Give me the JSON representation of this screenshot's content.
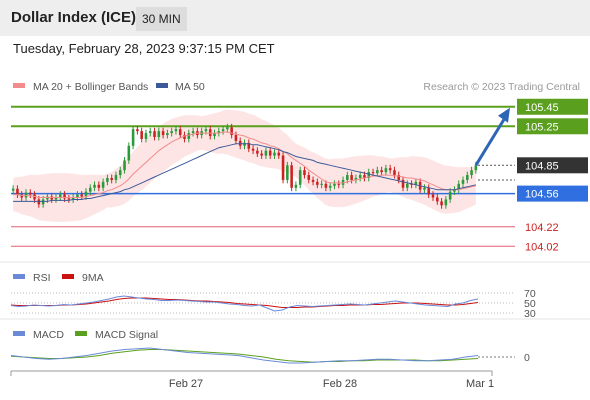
{
  "header": {
    "title": "Dollar Index (ICE)",
    "timeframe": "30 MIN"
  },
  "datetime": "Tuesday, February 28, 2023 9:37:15 PM CET",
  "legend": {
    "ma20": "MA 20 + Bollinger Bands",
    "ma50": "MA 50",
    "credit": "Research © 2023 Trading Central"
  },
  "colors": {
    "ma20": "#f28b8b",
    "ma50": "#3d5a98",
    "resistance": "#5aa01e",
    "pivot": "#2f6fe0",
    "support": "#e06070",
    "up": "#2a9a3a",
    "down": "#cc2222",
    "bollinger": "#fde0e0",
    "arrow": "#2d66b4",
    "rsi": "#6a8ad8",
    "rsi9ma": "#cc1111",
    "macd": "#6a8ad8",
    "macdSignal": "#5aa01e"
  },
  "chart_data": [
    {
      "type": "candlestick",
      "xlabel": "",
      "ylabel": "",
      "x_ticks": [
        "Feb 27",
        "Feb 28",
        "Mar 1"
      ],
      "ylim": [
        103.9,
        105.55
      ],
      "levels": [
        {
          "value": 105.45,
          "label": "105.45",
          "kind": "resistance"
        },
        {
          "value": 105.25,
          "label": "105.25",
          "kind": "resistance"
        },
        {
          "value": 104.85,
          "label": "104.85",
          "kind": "last"
        },
        {
          "value": 104.56,
          "label": "104.56",
          "kind": "pivot"
        },
        {
          "value": 104.22,
          "label": "104.22",
          "kind": "support"
        },
        {
          "value": 104.02,
          "label": "104.02",
          "kind": "support"
        }
      ],
      "close": [
        104.61,
        104.55,
        104.52,
        104.57,
        104.55,
        104.5,
        104.45,
        104.5,
        104.53,
        104.5,
        104.52,
        104.55,
        104.51,
        104.5,
        104.52,
        104.55,
        104.53,
        104.58,
        104.62,
        104.65,
        104.62,
        104.68,
        104.72,
        104.7,
        104.75,
        104.8,
        104.9,
        105.05,
        105.22,
        105.2,
        105.12,
        105.18,
        105.2,
        105.14,
        105.2,
        105.16,
        105.18,
        105.2,
        105.22,
        105.16,
        105.12,
        105.18,
        105.2,
        105.16,
        105.2,
        105.22,
        105.15,
        105.18,
        105.2,
        105.22,
        105.24,
        105.16,
        105.1,
        105.05,
        105.08,
        105.02,
        105.0,
        104.97,
        104.95,
        105.0,
        104.95,
        104.98,
        104.95,
        104.7,
        104.85,
        104.62,
        104.65,
        104.8,
        104.75,
        104.7,
        104.68,
        104.65,
        104.66,
        104.62,
        104.64,
        104.66,
        104.65,
        104.7,
        104.75,
        104.7,
        104.72,
        104.75,
        104.72,
        104.78,
        104.77,
        104.8,
        104.78,
        104.82,
        104.8,
        104.75,
        104.7,
        104.62,
        104.66,
        104.65,
        104.68,
        104.6,
        104.62,
        104.55,
        104.52,
        104.48,
        104.44,
        104.5,
        104.58,
        104.6,
        104.66,
        104.7,
        104.75,
        104.8,
        104.85
      ],
      "ma20": [
        104.55,
        104.55,
        104.54,
        104.54,
        104.54,
        104.53,
        104.52,
        104.52,
        104.52,
        104.52,
        104.52,
        104.52,
        104.52,
        104.52,
        104.52,
        104.52,
        104.52,
        104.53,
        104.54,
        104.55,
        104.56,
        104.57,
        104.59,
        104.6,
        104.62,
        104.64,
        104.67,
        104.71,
        104.76,
        104.8,
        104.84,
        104.88,
        104.92,
        104.96,
        105.0,
        105.03,
        105.06,
        105.09,
        105.11,
        105.13,
        105.15,
        105.16,
        105.17,
        105.18,
        105.18,
        105.18,
        105.18,
        105.18,
        105.18,
        105.19,
        105.19,
        105.18,
        105.17,
        105.16,
        105.15,
        105.13,
        105.12,
        105.1,
        105.08,
        105.07,
        105.05,
        105.04,
        105.02,
        104.99,
        104.97,
        104.93,
        104.9,
        104.87,
        104.84,
        104.8,
        104.77,
        104.74,
        104.71,
        104.68,
        104.67,
        104.67,
        104.67,
        104.67,
        104.68,
        104.69,
        104.7,
        104.71,
        104.72,
        104.73,
        104.74,
        104.74,
        104.75,
        104.75,
        104.75,
        104.74,
        104.74,
        104.73,
        104.72,
        104.72,
        104.71,
        104.7,
        104.69,
        104.67,
        104.65,
        104.63,
        104.61,
        104.6,
        104.6,
        104.6,
        104.6,
        104.61,
        104.62,
        104.63,
        104.64
      ],
      "ma50": [
        104.48,
        104.48,
        104.48,
        104.48,
        104.48,
        104.48,
        104.48,
        104.48,
        104.48,
        104.49,
        104.49,
        104.49,
        104.49,
        104.49,
        104.5,
        104.5,
        104.5,
        104.51,
        104.51,
        104.52,
        104.53,
        104.54,
        104.55,
        104.56,
        104.57,
        104.58,
        104.6,
        104.61,
        104.63,
        104.65,
        104.67,
        104.69,
        104.71,
        104.73,
        104.75,
        104.77,
        104.79,
        104.81,
        104.83,
        104.85,
        104.87,
        104.89,
        104.91,
        104.93,
        104.95,
        104.97,
        104.99,
        105.01,
        105.03,
        105.04,
        105.05,
        105.06,
        105.07,
        105.07,
        105.07,
        105.07,
        105.06,
        105.06,
        105.05,
        105.04,
        105.03,
        105.02,
        105.01,
        104.99,
        104.98,
        104.96,
        104.94,
        104.93,
        104.92,
        104.91,
        104.9,
        104.88,
        104.87,
        104.86,
        104.85,
        104.84,
        104.83,
        104.82,
        104.81,
        104.8,
        104.79,
        104.78,
        104.77,
        104.76,
        104.75,
        104.74,
        104.73,
        104.72,
        104.71,
        104.7,
        104.69,
        104.68,
        104.67,
        104.66,
        104.65,
        104.64,
        104.63,
        104.62,
        104.61,
        104.6,
        104.6,
        104.6,
        104.6,
        104.6,
        104.61,
        104.62,
        104.63,
        104.64,
        104.65
      ],
      "forecast": [
        104.85,
        105.45
      ]
    },
    {
      "type": "line",
      "title": "RSI",
      "series": [
        {
          "name": "RSI",
          "values": [
            45,
            43,
            44,
            46,
            45,
            44,
            45,
            47,
            46,
            48,
            50,
            52,
            55,
            58,
            62,
            64,
            62,
            60,
            58,
            57,
            55,
            55,
            56,
            55,
            54,
            53,
            52,
            52,
            50,
            48,
            47,
            45,
            44,
            46,
            40,
            34,
            36,
            42,
            45,
            44,
            43,
            44,
            45,
            46,
            47,
            48,
            47,
            46,
            48,
            50,
            52,
            54,
            52,
            50,
            48,
            46,
            45,
            44,
            43,
            48,
            50,
            55,
            58
          ]
        },
        {
          "name": "9MA",
          "values": [
            46,
            45,
            45,
            45,
            45,
            45,
            45,
            46,
            46,
            47,
            48,
            50,
            52,
            54,
            57,
            59,
            60,
            60,
            60,
            59,
            58,
            57,
            57,
            56,
            55,
            54,
            54,
            53,
            52,
            51,
            49,
            48,
            47,
            46,
            45,
            43,
            41,
            41,
            41,
            42,
            42,
            43,
            44,
            45,
            45,
            46,
            46,
            46,
            47,
            47,
            48,
            49,
            50,
            50,
            50,
            49,
            48,
            47,
            46,
            46,
            47,
            49,
            51
          ]
        }
      ],
      "y_ticks": [
        "70",
        "50",
        "30"
      ]
    },
    {
      "type": "line",
      "title": "MACD",
      "series": [
        {
          "name": "MACD",
          "values": [
            0.02,
            0.0,
            -0.02,
            -0.03,
            -0.02,
            0.0,
            0.02,
            0.05,
            0.08,
            0.1,
            0.11,
            0.12,
            0.1,
            0.08,
            0.06,
            0.05,
            0.04,
            0.03,
            0.02,
            -0.01,
            -0.04,
            -0.06,
            -0.08,
            -0.08,
            -0.07,
            -0.06,
            -0.05,
            -0.05,
            -0.04,
            -0.03,
            -0.03,
            -0.04,
            -0.05,
            -0.05,
            -0.04,
            -0.03,
            0.0,
            0.02
          ]
        },
        {
          "name": "MACD Signal",
          "values": [
            0.01,
            0.0,
            -0.01,
            -0.02,
            -0.02,
            -0.01,
            0.0,
            0.02,
            0.05,
            0.07,
            0.09,
            0.1,
            0.1,
            0.09,
            0.08,
            0.07,
            0.06,
            0.05,
            0.04,
            0.02,
            0.0,
            -0.03,
            -0.05,
            -0.06,
            -0.07,
            -0.06,
            -0.06,
            -0.05,
            -0.05,
            -0.04,
            -0.04,
            -0.04,
            -0.04,
            -0.05,
            -0.05,
            -0.04,
            -0.03,
            -0.02
          ]
        }
      ],
      "y_ticks": [
        "0"
      ]
    }
  ]
}
